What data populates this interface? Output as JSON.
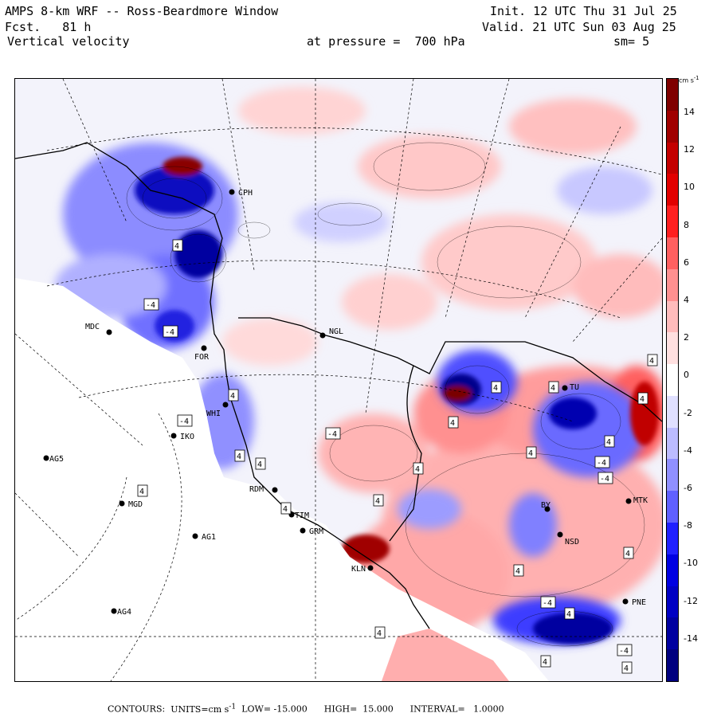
{
  "header": {
    "title": "AMPS 8-km WRF -- Ross-Beardmore Window",
    "forecast": "Fcst.   81 h",
    "variable": "Vertical velocity",
    "level": "at pressure =  700 hPa",
    "init": "Init. 12 UTC Thu 31 Jul 25",
    "valid": "Valid. 21 UTC Sun 03 Aug 25",
    "smoothing": "sm= 5"
  },
  "colorbar": {
    "unit": "cm s",
    "unit_exp": "-1",
    "labels": [
      "14",
      "12",
      "10",
      "8",
      "6",
      "4",
      "2",
      "0",
      "-2",
      "-4",
      "-6",
      "-8",
      "-10",
      "-12",
      "-14"
    ],
    "colors": [
      "#7f0000",
      "#a00000",
      "#c40000",
      "#e20000",
      "#ff2020",
      "#ff6060",
      "#ff9090",
      "#ffbcbc",
      "#ffe0e0",
      "#ffffff",
      "#e0e0ff",
      "#bcbcff",
      "#9090ff",
      "#6060ff",
      "#2020ff",
      "#0000e2",
      "#0000c4",
      "#0000a0",
      "#00007f"
    ]
  },
  "footer": {
    "contours_label": "CONTOURS:",
    "units_label": "UNITS=cm s",
    "units_exp": "-1",
    "low": "LOW= -15.000",
    "high": "HIGH=  15.000",
    "interval": "INTERVAL=   1.0000"
  },
  "stations": [
    {
      "code": "CPH"
    },
    {
      "code": "MDC"
    },
    {
      "code": "FOR"
    },
    {
      "code": "NGL"
    },
    {
      "code": "WHI"
    },
    {
      "code": "IKO"
    },
    {
      "code": "AG5"
    },
    {
      "code": "MGD"
    },
    {
      "code": "RDM"
    },
    {
      "code": "TIM"
    },
    {
      "code": "GRM"
    },
    {
      "code": "AG1"
    },
    {
      "code": "KLN"
    },
    {
      "code": "AG4"
    },
    {
      "code": "BY"
    },
    {
      "code": "NSD"
    },
    {
      "code": "PNE"
    },
    {
      "code": "MTK"
    },
    {
      "code": "TU"
    }
  ],
  "contour_labels": [
    "4",
    "-4",
    "-4",
    "-4",
    "4",
    "-4",
    "4",
    "4",
    "4",
    "4",
    "4",
    "4",
    "4",
    "4",
    "4",
    "4",
    "-4",
    "4",
    "-4",
    "4",
    "4",
    "-4",
    "4",
    "-4",
    "4",
    "4",
    "4",
    "4",
    "4"
  ]
}
